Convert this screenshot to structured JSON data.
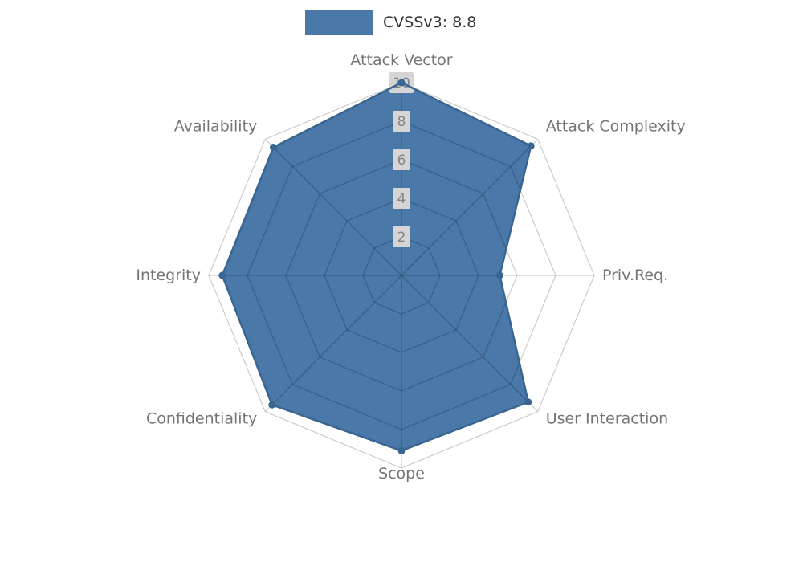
{
  "chart_data": {
    "type": "radar",
    "title": "CVSSv3: 8.8",
    "categories": [
      "Attack Vector",
      "Attack Complexity",
      "Priv.Req.",
      "User Interaction",
      "Scope",
      "Confidentiality",
      "Integrity",
      "Availability"
    ],
    "series": [
      {
        "name": "CVSSv3: 8.8",
        "values": [
          10,
          9.5,
          5.1,
          9.3,
          9.1,
          9.5,
          9.3,
          9.4
        ]
      }
    ],
    "rmax": 10,
    "rticks": [
      2,
      4,
      6,
      8,
      10
    ],
    "grid": true,
    "legend_position": "top-center",
    "colors": {
      "fill": "#4A78A8",
      "stroke": "#3A6590",
      "grid": "#CCCCCC",
      "inner_grid": "rgba(0,0,0,0.22)",
      "axis_label": "#757575",
      "tick_text": "#858585",
      "tick_bg": "#D5D5D5",
      "legend_text": "#333333"
    }
  }
}
